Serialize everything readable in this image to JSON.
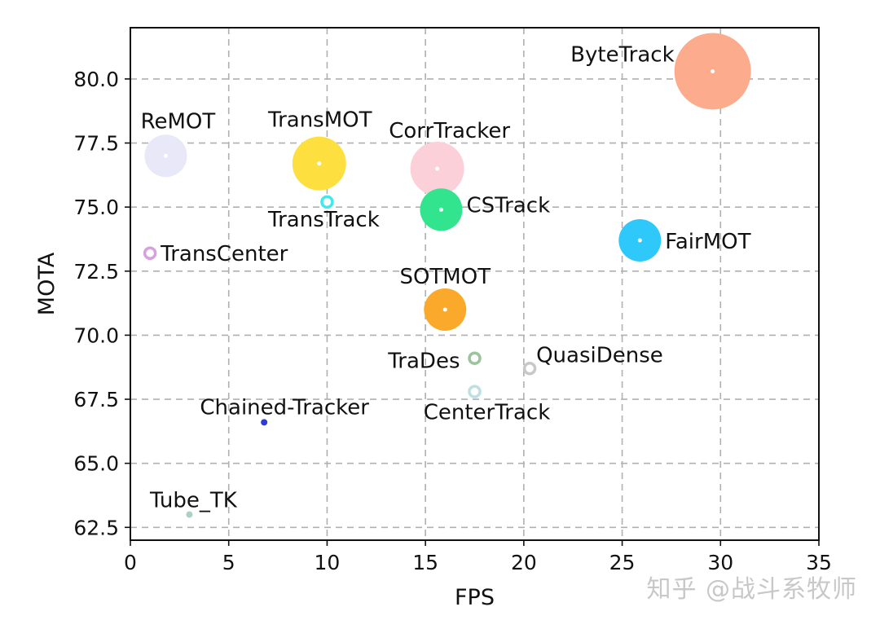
{
  "chart_data": {
    "type": "scatter",
    "title": "",
    "xlabel": "FPS",
    "ylabel": "MOTA",
    "xlim": [
      0,
      35
    ],
    "ylim": [
      62.0,
      82.0
    ],
    "xticks": [
      0,
      5,
      10,
      15,
      20,
      25,
      30,
      35
    ],
    "xtick_labels": [
      "0",
      "5",
      "10",
      "15",
      "20",
      "25",
      "30",
      "35"
    ],
    "yticks": [
      62.5,
      65.0,
      67.5,
      70.0,
      72.5,
      75.0,
      77.5,
      80.0
    ],
    "ytick_labels": [
      "62.5",
      "65.0",
      "67.5",
      "70.0",
      "72.5",
      "75.0",
      "77.5",
      "80.0"
    ],
    "grid": true,
    "points": [
      {
        "name": "ByteTrack",
        "fps": 29.6,
        "mota": 80.3,
        "color": "#fcab8c",
        "size": "xlarge"
      },
      {
        "name": "ReMOT",
        "fps": 1.8,
        "mota": 77.0,
        "color": "#e8e8f8",
        "size": "medium"
      },
      {
        "name": "TransMOT",
        "fps": 9.6,
        "mota": 76.7,
        "color": "#fde040",
        "size": "large"
      },
      {
        "name": "CorrTracker",
        "fps": 15.6,
        "mota": 76.5,
        "color": "#fcd0d8",
        "size": "large"
      },
      {
        "name": "TransTrack",
        "fps": 10.0,
        "mota": 75.2,
        "color": "#42e8ea",
        "size": "small"
      },
      {
        "name": "CSTrack",
        "fps": 15.8,
        "mota": 74.9,
        "color": "#33e48e",
        "size": "medium"
      },
      {
        "name": "FairMOT",
        "fps": 25.9,
        "mota": 73.7,
        "color": "#2ec8fa",
        "size": "medium"
      },
      {
        "name": "TransCenter",
        "fps": 1.0,
        "mota": 73.2,
        "color": "#d8a0e0",
        "size": "small"
      },
      {
        "name": "SOTMOT",
        "fps": 16.0,
        "mota": 71.0,
        "color": "#fba92a",
        "size": "medium"
      },
      {
        "name": "TraDes",
        "fps": 17.5,
        "mota": 69.1,
        "color": "#9cc49c",
        "size": "small"
      },
      {
        "name": "QuasiDense",
        "fps": 20.3,
        "mota": 68.7,
        "color": "#c8c8c8",
        "size": "small"
      },
      {
        "name": "CenterTrack",
        "fps": 17.5,
        "mota": 67.8,
        "color": "#bce0e4",
        "size": "small"
      },
      {
        "name": "Chained-Tracker",
        "fps": 6.8,
        "mota": 66.6,
        "color": "#2c3cd4",
        "size": "tiny"
      },
      {
        "name": "Tube_TK",
        "fps": 3.0,
        "mota": 63.0,
        "color": "#aed0c4",
        "size": "tiny"
      }
    ]
  },
  "watermark": "知乎 @战斗系牧师"
}
